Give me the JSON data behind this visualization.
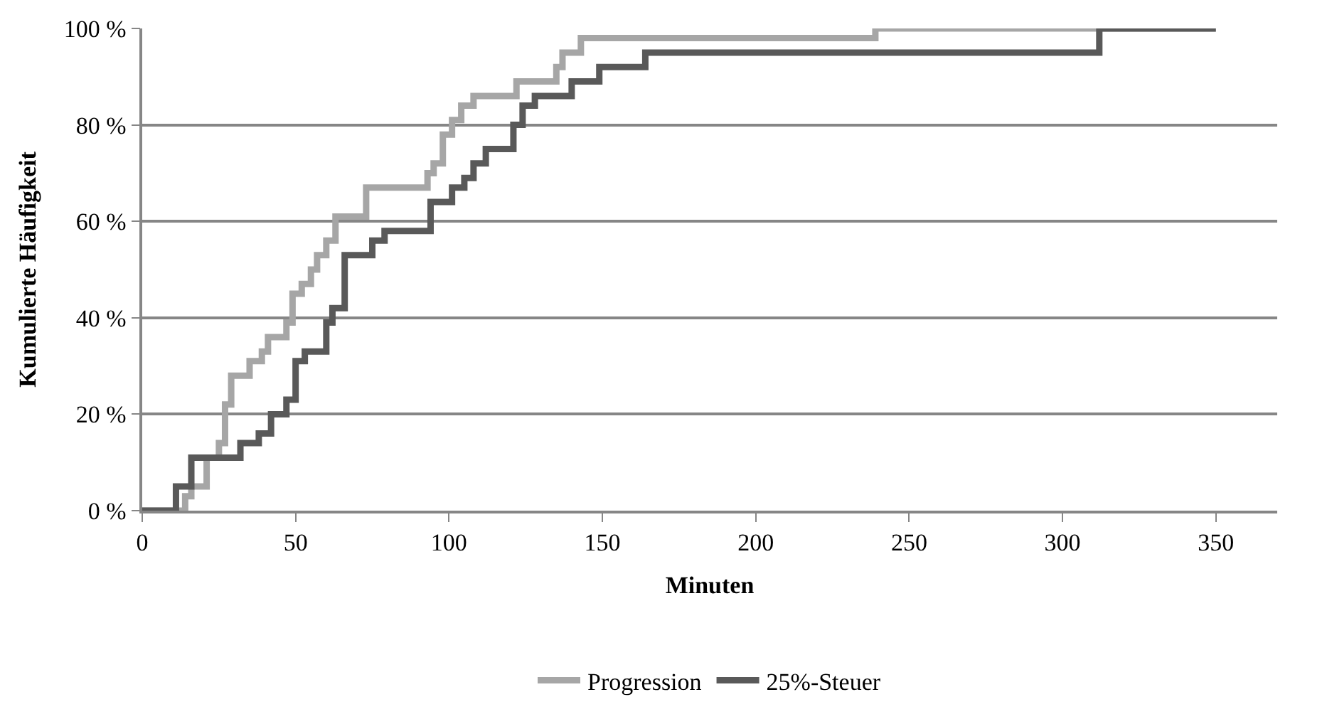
{
  "chart_data": {
    "type": "step",
    "xlabel": "Minuten",
    "ylabel": "Kumulierte Häufigkeit",
    "xlim": [
      0,
      370
    ],
    "xticks": [
      0,
      50,
      100,
      150,
      200,
      250,
      300,
      350
    ],
    "ylim": [
      0,
      100
    ],
    "yticks": [
      {
        "value": 0,
        "label": "0 %"
      },
      {
        "value": 20,
        "label": "20 %"
      },
      {
        "value": 40,
        "label": "40 %"
      },
      {
        "value": 60,
        "label": "60 %"
      },
      {
        "value": 80,
        "label": "80 %"
      },
      {
        "value": 100,
        "label": "100 %"
      }
    ],
    "grid": "y",
    "legend": "bottom",
    "marker": "none",
    "line_style": "solid",
    "series": [
      {
        "name": "Progression",
        "color": "#a6a6a6",
        "x": [
          0,
          14,
          16,
          21,
          25,
          27,
          29,
          35,
          39,
          41,
          47,
          49,
          52,
          55,
          57,
          60,
          63,
          73,
          93,
          95,
          98,
          101,
          104,
          108,
          122,
          135,
          137,
          143,
          239,
          350
        ],
        "values": [
          0,
          3,
          5,
          11,
          14,
          22,
          28,
          31,
          33,
          36,
          39,
          45,
          47,
          50,
          53,
          56,
          61,
          67,
          70,
          72,
          78,
          81,
          84,
          86,
          89,
          92,
          95,
          98,
          100,
          100
        ]
      },
      {
        "name": "25%-Steuer",
        "color": "#595959",
        "x": [
          0,
          11,
          16,
          32,
          38,
          42,
          47,
          50,
          53,
          60,
          62,
          66,
          75,
          79,
          94,
          101,
          105,
          108,
          112,
          121,
          124,
          128,
          140,
          149,
          164,
          312,
          350
        ],
        "values": [
          0,
          5,
          11,
          14,
          16,
          20,
          23,
          31,
          33,
          39,
          42,
          53,
          56,
          58,
          64,
          67,
          69,
          72,
          75,
          80,
          84,
          86,
          89,
          92,
          95,
          100,
          100
        ]
      }
    ]
  }
}
